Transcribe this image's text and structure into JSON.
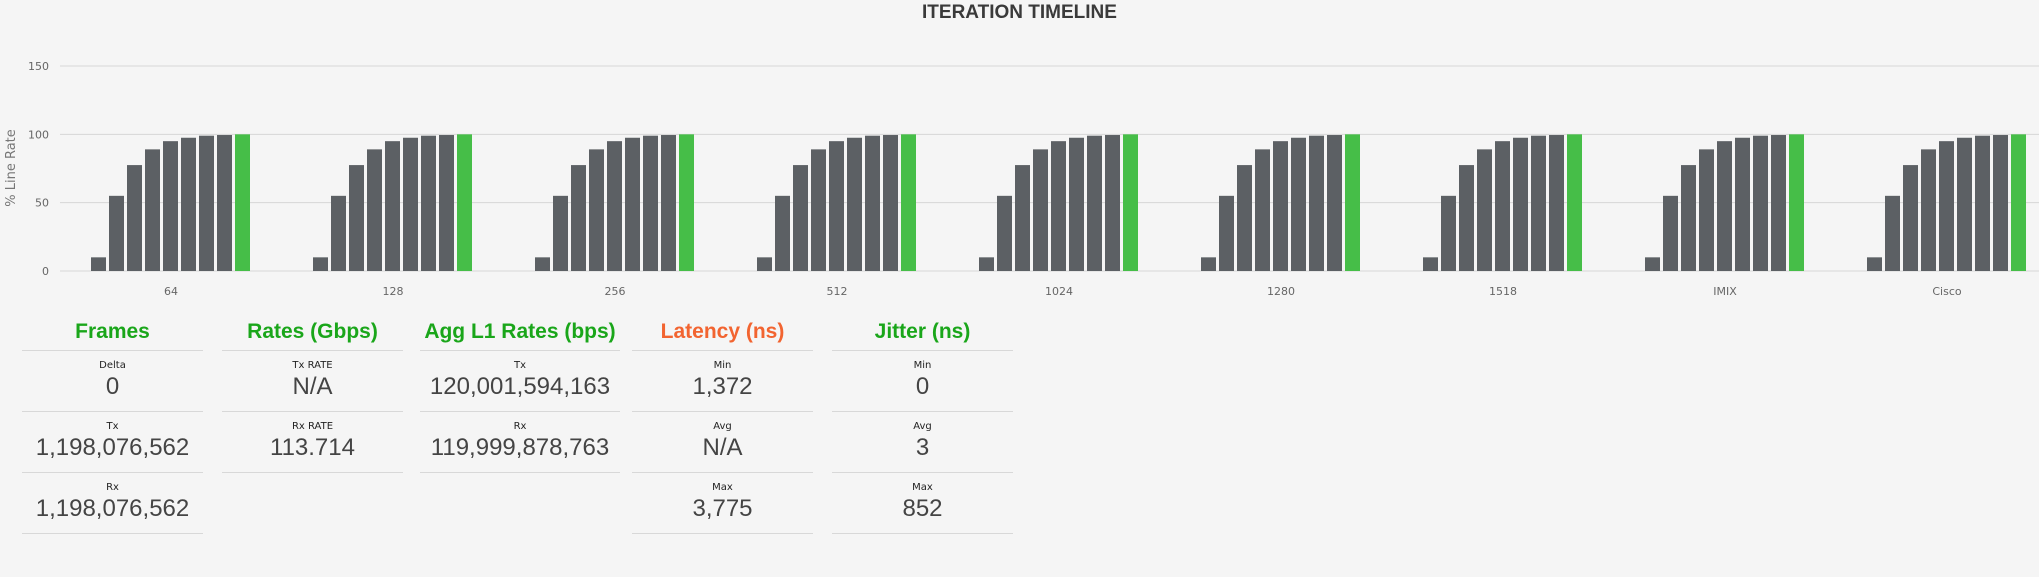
{
  "chart_data": {
    "type": "bar",
    "title": "ITERATION TIMELINE",
    "xlabel": "",
    "ylabel": "% Line Rate",
    "ylim": [
      0,
      150
    ],
    "yticks": [
      0,
      50,
      100,
      150
    ],
    "grid": true,
    "categories": [
      "64",
      "128",
      "256",
      "512",
      "1024",
      "1280",
      "1518",
      "IMIX",
      "Cisco"
    ],
    "iteration_values": [
      10,
      55,
      77.5,
      89,
      95,
      97.5,
      99,
      99.5,
      100
    ],
    "colors": {
      "iteration": "#5c6064",
      "final": "#46be48"
    }
  },
  "panels": [
    {
      "title": "Frames",
      "color": "#1aa61a",
      "rows": [
        {
          "label": "Delta",
          "value": "0"
        },
        {
          "label": "Tx",
          "value": "1,198,076,562"
        },
        {
          "label": "Rx",
          "value": "1,198,076,562"
        }
      ]
    },
    {
      "title": "Rates (Gbps)",
      "color": "#1aa61a",
      "rows": [
        {
          "label": "Tx RATE",
          "value": "N/A"
        },
        {
          "label": "Rx RATE",
          "value": "113.714"
        }
      ]
    },
    {
      "title": "Agg L1 Rates (bps)",
      "color": "#1aa61a",
      "rows": [
        {
          "label": "Tx",
          "value": "120,001,594,163"
        },
        {
          "label": "Rx",
          "value": "119,999,878,763"
        }
      ]
    },
    {
      "title": "Latency (ns)",
      "color": "#f26430",
      "rows": [
        {
          "label": "Min",
          "value": "1,372"
        },
        {
          "label": "Avg",
          "value": "N/A"
        },
        {
          "label": "Max",
          "value": "3,775"
        }
      ]
    },
    {
      "title": "Jitter (ns)",
      "color": "#1aa61a",
      "rows": [
        {
          "label": "Min",
          "value": "0"
        },
        {
          "label": "Avg",
          "value": "3"
        },
        {
          "label": "Max",
          "value": "852"
        }
      ]
    }
  ]
}
